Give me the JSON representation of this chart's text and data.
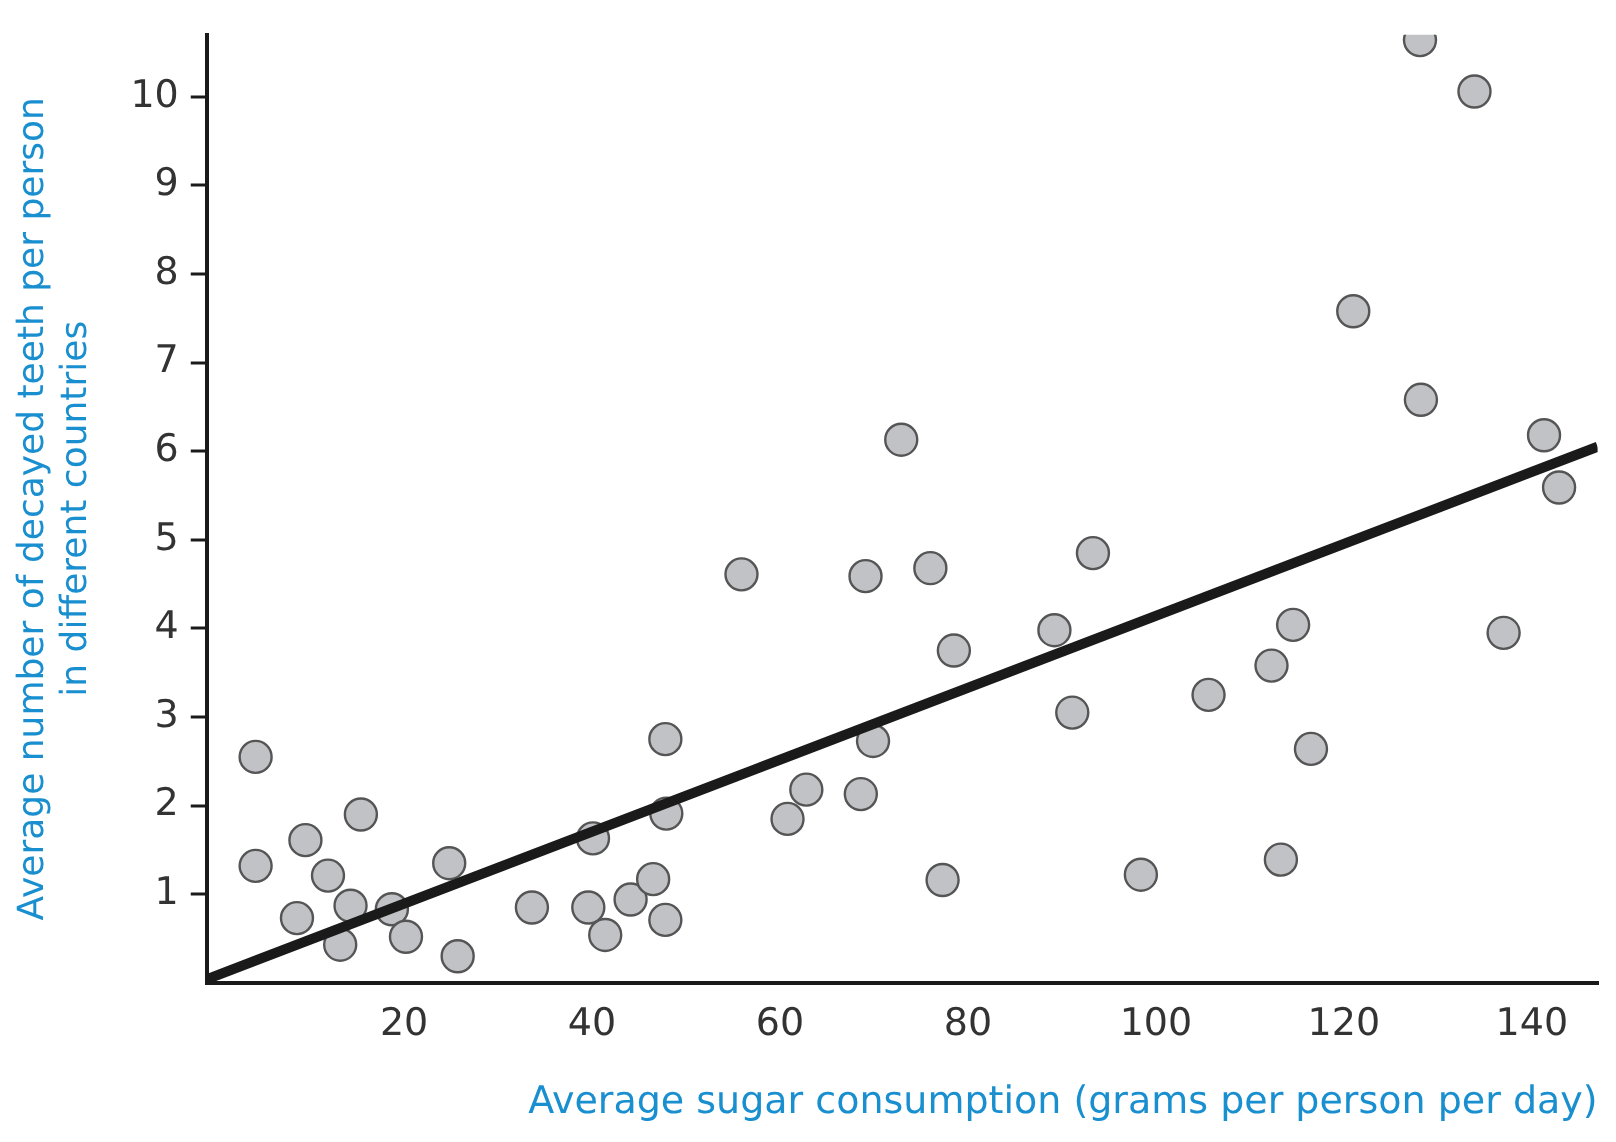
{
  "chart_data": {
    "type": "scatter",
    "xlabel": "Average sugar consumption (grams per person per day)",
    "ylabel": "Average number of decayed teeth per person\nin different countries",
    "xlim": [
      -1,
      147
    ],
    "ylim": [
      0,
      10.7
    ],
    "xticks": [
      20,
      40,
      60,
      80,
      100,
      120,
      140
    ],
    "yticks": [
      1,
      2,
      3,
      4,
      5,
      6,
      7,
      8,
      9,
      10
    ],
    "grid": false,
    "legend": false,
    "marker": "circle",
    "series": [
      {
        "color": "#c0c2c6",
        "x": [
          4.2,
          4.2,
          8.6,
          9.5,
          11.9,
          13.2,
          14.3,
          15.4,
          18.7,
          20.2,
          24.8,
          25.7,
          33.6,
          39.6,
          40.1,
          41.4,
          44.1,
          46.5,
          47.8,
          47.9,
          47.8,
          55.9,
          72.9,
          69.1,
          76.0,
          93.3,
          89.2,
          78.5,
          114.6,
          112.3,
          105.6,
          91.1,
          116.5,
          69.9,
          62.8,
          60.8,
          68.6,
          77.3,
          98.4,
          113.3,
          128.1,
          133.9,
          121.0,
          128.2,
          141.3,
          142.9,
          137.0
        ],
        "values": [
          2.55,
          1.32,
          0.73,
          1.61,
          1.21,
          0.43,
          0.87,
          1.9,
          0.83,
          0.52,
          1.35,
          0.3,
          0.85,
          0.85,
          1.63,
          0.54,
          0.94,
          1.17,
          0.71,
          1.91,
          2.75,
          4.61,
          6.13,
          4.59,
          4.68,
          4.85,
          3.98,
          3.75,
          4.04,
          3.58,
          3.25,
          3.05,
          2.64,
          2.73,
          2.18,
          1.85,
          2.13,
          1.16,
          1.22,
          1.39,
          10.64,
          10.06,
          7.58,
          6.58,
          6.18,
          5.59,
          3.95
        ]
      },
      {
        "type": "line",
        "color": "#1a1a1a",
        "x": [
          -1,
          147
        ],
        "values": [
          0.04,
          6.05
        ],
        "marker": "none"
      }
    ]
  }
}
